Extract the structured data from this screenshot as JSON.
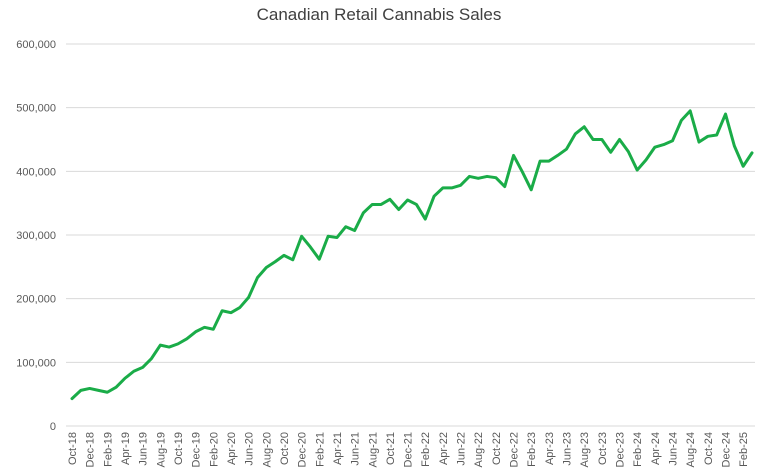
{
  "chart_data": {
    "type": "line",
    "title": "Canadian Retail Cannabis Sales",
    "xlabel": "",
    "ylabel": "",
    "ylim": [
      0,
      600000
    ],
    "y_ticks": [
      0,
      100000,
      200000,
      300000,
      400000,
      500000,
      600000
    ],
    "y_tick_labels": [
      "0",
      "100,000",
      "200,000",
      "300,000",
      "400,000",
      "500,000",
      "600,000"
    ],
    "x_tick_labels": [
      "Oct-18",
      "Dec-18",
      "Feb-19",
      "Apr-19",
      "Jun-19",
      "Aug-19",
      "Oct-19",
      "Dec-19",
      "Feb-20",
      "Apr-20",
      "Jun-20",
      "Aug-20",
      "Oct-20",
      "Dec-20",
      "Feb-21",
      "Apr-21",
      "Jun-21",
      "Aug-21",
      "Oct-21",
      "Dec-21",
      "Feb-22",
      "Apr-22",
      "Jun-22",
      "Aug-22",
      "Oct-22",
      "Dec-22",
      "Feb-23",
      "Apr-23",
      "Jun-23",
      "Aug-23",
      "Oct-23",
      "Dec-23",
      "Feb-24",
      "Apr-24",
      "Jun-24",
      "Aug-24",
      "Oct-24",
      "Dec-24",
      "Feb-25"
    ],
    "grid": true,
    "legend": "none",
    "line_color": "#1aac48",
    "gridline_color": "#d9d9d9",
    "categories": [
      "Oct-18",
      "Nov-18",
      "Dec-18",
      "Jan-19",
      "Feb-19",
      "Mar-19",
      "Apr-19",
      "May-19",
      "Jun-19",
      "Jul-19",
      "Aug-19",
      "Sep-19",
      "Oct-19",
      "Nov-19",
      "Dec-19",
      "Jan-20",
      "Feb-20",
      "Mar-20",
      "Apr-20",
      "May-20",
      "Jun-20",
      "Jul-20",
      "Aug-20",
      "Sep-20",
      "Oct-20",
      "Nov-20",
      "Dec-20",
      "Jan-21",
      "Feb-21",
      "Mar-21",
      "Apr-21",
      "May-21",
      "Jun-21",
      "Jul-21",
      "Aug-21",
      "Sep-21",
      "Oct-21",
      "Nov-21",
      "Dec-21",
      "Jan-22",
      "Feb-22",
      "Mar-22",
      "Apr-22",
      "May-22",
      "Jun-22",
      "Jul-22",
      "Aug-22",
      "Sep-22",
      "Oct-22",
      "Nov-22",
      "Dec-22",
      "Jan-23",
      "Feb-23",
      "Mar-23",
      "Apr-23",
      "May-23",
      "Jun-23",
      "Jul-23",
      "Aug-23",
      "Sep-23",
      "Oct-23",
      "Nov-23",
      "Dec-23",
      "Jan-24",
      "Feb-24",
      "Mar-24",
      "Apr-24",
      "May-24",
      "Jun-24",
      "Jul-24",
      "Aug-24",
      "Sep-24",
      "Oct-24",
      "Nov-24",
      "Dec-24",
      "Jan-25",
      "Feb-25",
      "Mar-25"
    ],
    "values": [
      43000,
      56000,
      59000,
      56000,
      53000,
      61000,
      75000,
      86000,
      92000,
      106000,
      127000,
      124000,
      129000,
      137000,
      148000,
      155000,
      152000,
      181000,
      178000,
      186000,
      202000,
      233000,
      249000,
      258000,
      268000,
      261000,
      298000,
      281000,
      262000,
      298000,
      296000,
      313000,
      307000,
      335000,
      348000,
      348000,
      356000,
      340000,
      355000,
      348000,
      325000,
      361000,
      374000,
      374000,
      378000,
      392000,
      389000,
      392000,
      390000,
      376000,
      425000,
      399000,
      371000,
      416000,
      416000,
      425000,
      435000,
      459000,
      470000,
      450000,
      450000,
      430000,
      450000,
      431000,
      402000,
      418000,
      438000,
      442000,
      448000,
      480000,
      495000,
      446000,
      455000,
      457000,
      490000,
      440000,
      408000,
      429000
    ]
  }
}
